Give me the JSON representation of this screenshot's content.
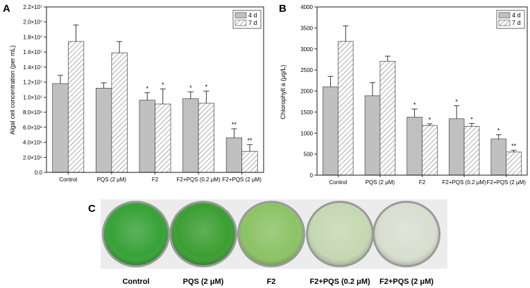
{
  "panel_letters": {
    "a": "A",
    "b": "B",
    "c": "C"
  },
  "colors": {
    "bar_4d": "#c0c0c0",
    "bar_outline": "#404040",
    "hatch": "#808080"
  },
  "chart_data": [
    {
      "type": "bar",
      "panel": "A",
      "ylabel": "Algal cell concentration (per mL)",
      "ylim": [
        0,
        22000000
      ],
      "yticks": [
        "0.0",
        "2.0×10⁶",
        "4.0×10⁶",
        "6.0×10⁶",
        "8.0×10⁶",
        "1.0×10⁷",
        "1.2×10⁷",
        "1.4×10⁷",
        "1.6×10⁷",
        "1.8×10⁷",
        "2.0×10⁷",
        "2.2×10⁷"
      ],
      "categories": [
        "Control",
        "PQS (2 μM)",
        "F2",
        "F2+PQS (0.2 μM)",
        "F2+PQS (2 μM)"
      ],
      "legend_position": "top-right",
      "series": [
        {
          "name": "4 d",
          "values": [
            11800000,
            11200000,
            9600000,
            9800000,
            4600000
          ],
          "errors": [
            1100000,
            700000,
            1000000,
            900000,
            1200000
          ],
          "annotations": [
            "",
            "",
            "*",
            "*",
            "**"
          ]
        },
        {
          "name": "7 d",
          "values": [
            17400000,
            15900000,
            9100000,
            9200000,
            2800000
          ],
          "errors": [
            2200000,
            1500000,
            2000000,
            1600000,
            900000
          ],
          "annotations": [
            "",
            "",
            "*",
            "*",
            "**"
          ]
        }
      ]
    },
    {
      "type": "bar",
      "panel": "B",
      "ylabel": "Chlorophyll a (μg/L)",
      "ylim": [
        0,
        4000
      ],
      "yticks": [
        "0",
        "500",
        "1000",
        "1500",
        "2000",
        "2500",
        "3000",
        "3500",
        "4000"
      ],
      "categories": [
        "Control",
        "PQS (2 μM)",
        "F2",
        "F2+PQS (0.2 μM)",
        "F2+PQS (2 μM)"
      ],
      "legend_position": "top-right",
      "series": [
        {
          "name": "4 d",
          "values": [
            2100,
            1890,
            1380,
            1340,
            860
          ],
          "errors": [
            250,
            310,
            190,
            310,
            100
          ],
          "annotations": [
            "",
            "",
            "*",
            "*",
            "*"
          ]
        },
        {
          "name": "7 d",
          "values": [
            3180,
            2710,
            1180,
            1160,
            550
          ],
          "errors": [
            370,
            120,
            40,
            70,
            40
          ],
          "annotations": [
            "",
            "",
            "*",
            "*",
            "**"
          ]
        }
      ]
    }
  ],
  "dishes": [
    {
      "label": "Control",
      "color": "#37a237"
    },
    {
      "label": "PQS (2 μM)",
      "color": "#3c9e32"
    },
    {
      "label": "F2",
      "color": "#8cc366"
    },
    {
      "label": "F2+PQS (0.2 μM)",
      "color": "#c6d8b3"
    },
    {
      "label": "F2+PQS (2 μM)",
      "color": "#d8dfcf"
    }
  ]
}
